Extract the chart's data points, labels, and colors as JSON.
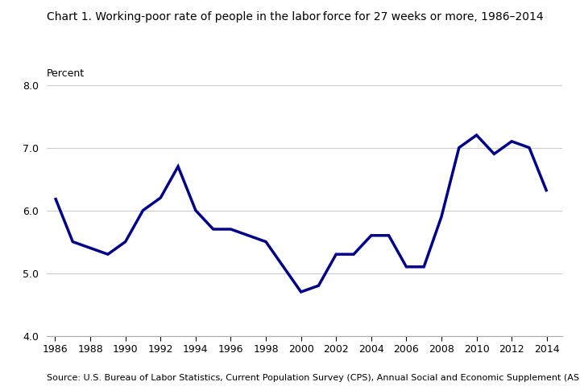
{
  "title": "Chart 1. Working-poor rate of people in the labor force for 27 weeks or more, 1986–2014",
  "ylabel": "Percent",
  "source": "Source: U.S. Bureau of Labor Statistics, Current Population Survey (CPS), Annual Social and Economic Supplement (ASEC).",
  "years": [
    1986,
    1987,
    1988,
    1989,
    1990,
    1991,
    1992,
    1993,
    1994,
    1995,
    1996,
    1997,
    1998,
    1999,
    2000,
    2001,
    2002,
    2003,
    2004,
    2005,
    2006,
    2007,
    2008,
    2009,
    2010,
    2011,
    2012,
    2013,
    2014
  ],
  "values": [
    6.2,
    5.5,
    5.4,
    5.3,
    5.5,
    6.0,
    6.2,
    6.7,
    6.0,
    5.7,
    5.7,
    5.6,
    5.5,
    5.1,
    4.7,
    4.8,
    5.3,
    5.3,
    5.6,
    5.6,
    5.1,
    5.1,
    5.9,
    7.0,
    7.2,
    6.9,
    7.1,
    7.0,
    6.3
  ],
  "line_color": "#00008B",
  "line_width": 2.5,
  "ylim": [
    4.0,
    8.0
  ],
  "yticks": [
    4.0,
    5.0,
    6.0,
    7.0,
    8.0
  ],
  "xtick_years": [
    1986,
    1988,
    1990,
    1992,
    1994,
    1996,
    1998,
    2000,
    2002,
    2004,
    2006,
    2008,
    2010,
    2012,
    2014
  ],
  "grid_color": "#cccccc",
  "background_color": "#ffffff",
  "title_fontsize": 10,
  "ylabel_fontsize": 9,
  "tick_fontsize": 9,
  "source_fontsize": 8
}
